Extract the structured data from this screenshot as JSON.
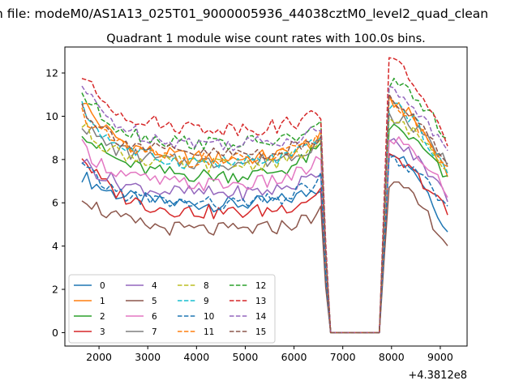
{
  "figure": {
    "suptitle": "n file: modeM0/AS1A13_025T01_9000005936_44038cztM0_level2_quad_clean",
    "offset_label": "+4.3812e8"
  },
  "chart_data": {
    "type": "line",
    "title": "Quadrant 1 module wise count rates with 100.0s bins.",
    "xlabel": "",
    "ylabel": "",
    "xlim": [
      1300,
      9550
    ],
    "ylim": [
      -0.62,
      13.2
    ],
    "x_offset": 438120000,
    "x_ticks": [
      2000,
      3000,
      4000,
      5000,
      6000,
      7000,
      8000,
      9000
    ],
    "y_ticks": [
      0,
      2,
      4,
      6,
      8,
      10,
      12
    ],
    "grid": false,
    "legend": {
      "placement": "lower-left",
      "columns": 4
    },
    "series_shape": {
      "x_start": 1650,
      "x_step": 100,
      "pre_gap_end": 6550,
      "gap_start": 6750,
      "gap_end": 7750,
      "post_gap_start": 7950,
      "x_end": 9150
    },
    "series": [
      {
        "name": "0",
        "color": "#1f77b4",
        "style": "solid",
        "start": 7.3,
        "flat": 5.9,
        "pre_end": 6.8,
        "post_peak": 8.5,
        "post_end": 4.6
      },
      {
        "name": "1",
        "color": "#ff7f0e",
        "style": "solid",
        "start": 10.8,
        "flat": 8.0,
        "pre_end": 9.0,
        "post_peak": 10.7,
        "post_end": 7.3
      },
      {
        "name": "2",
        "color": "#2ca02c",
        "style": "solid",
        "start": 9.4,
        "flat": 7.2,
        "pre_end": 8.6,
        "post_peak": 9.5,
        "post_end": 7.0
      },
      {
        "name": "3",
        "color": "#d62728",
        "style": "solid",
        "start": 8.2,
        "flat": 5.5,
        "pre_end": 6.6,
        "post_peak": 8.0,
        "post_end": 5.5
      },
      {
        "name": "4",
        "color": "#9467bd",
        "style": "solid",
        "start": 8.0,
        "flat": 6.4,
        "pre_end": 7.5,
        "post_peak": 8.8,
        "post_end": 6.2
      },
      {
        "name": "5",
        "color": "#8c564b",
        "style": "solid",
        "start": 6.4,
        "flat": 4.7,
        "pre_end": 5.6,
        "post_peak": 6.9,
        "post_end": 4.0
      },
      {
        "name": "6",
        "color": "#e377c2",
        "style": "solid",
        "start": 8.6,
        "flat": 6.8,
        "pre_end": 8.0,
        "post_peak": 9.0,
        "post_end": 6.4
      },
      {
        "name": "7",
        "color": "#7f7f7f",
        "style": "solid",
        "start": 9.7,
        "flat": 7.8,
        "pre_end": 9.0,
        "post_peak": 10.0,
        "post_end": 7.8
      },
      {
        "name": "8",
        "color": "#bcbd22",
        "style": "dashed",
        "start": 9.6,
        "flat": 7.7,
        "pre_end": 8.8,
        "post_peak": 9.8,
        "post_end": 7.6
      },
      {
        "name": "9",
        "color": "#17becf",
        "style": "dashed",
        "start": 10.4,
        "flat": 7.8,
        "pre_end": 8.9,
        "post_peak": 10.6,
        "post_end": 7.2
      },
      {
        "name": "10",
        "color": "#1f77b4",
        "style": "dashed",
        "start": 7.7,
        "flat": 5.9,
        "pre_end": 7.2,
        "post_peak": 8.0,
        "post_end": 5.7
      },
      {
        "name": "11",
        "color": "#ff7f0e",
        "style": "dashed",
        "start": 10.2,
        "flat": 7.9,
        "pre_end": 9.1,
        "post_peak": 10.6,
        "post_end": 7.4
      },
      {
        "name": "12",
        "color": "#2ca02c",
        "style": "dashed",
        "start": 11.1,
        "flat": 8.7,
        "pre_end": 9.5,
        "post_peak": 11.5,
        "post_end": 9.0
      },
      {
        "name": "13",
        "color": "#d62728",
        "style": "dashed",
        "start": 11.9,
        "flat": 9.4,
        "pre_end": 10.2,
        "post_peak": 12.6,
        "post_end": 8.4
      },
      {
        "name": "14",
        "color": "#9467bd",
        "style": "dashed",
        "start": 11.4,
        "flat": 8.7,
        "pre_end": 9.5,
        "post_peak": 11.2,
        "post_end": 8.2
      },
      {
        "name": "15",
        "color": "#8c564b",
        "style": "dashed",
        "start": 10.5,
        "flat": 8.2,
        "pre_end": 9.0,
        "post_peak": 10.8,
        "post_end": 7.6
      }
    ]
  }
}
